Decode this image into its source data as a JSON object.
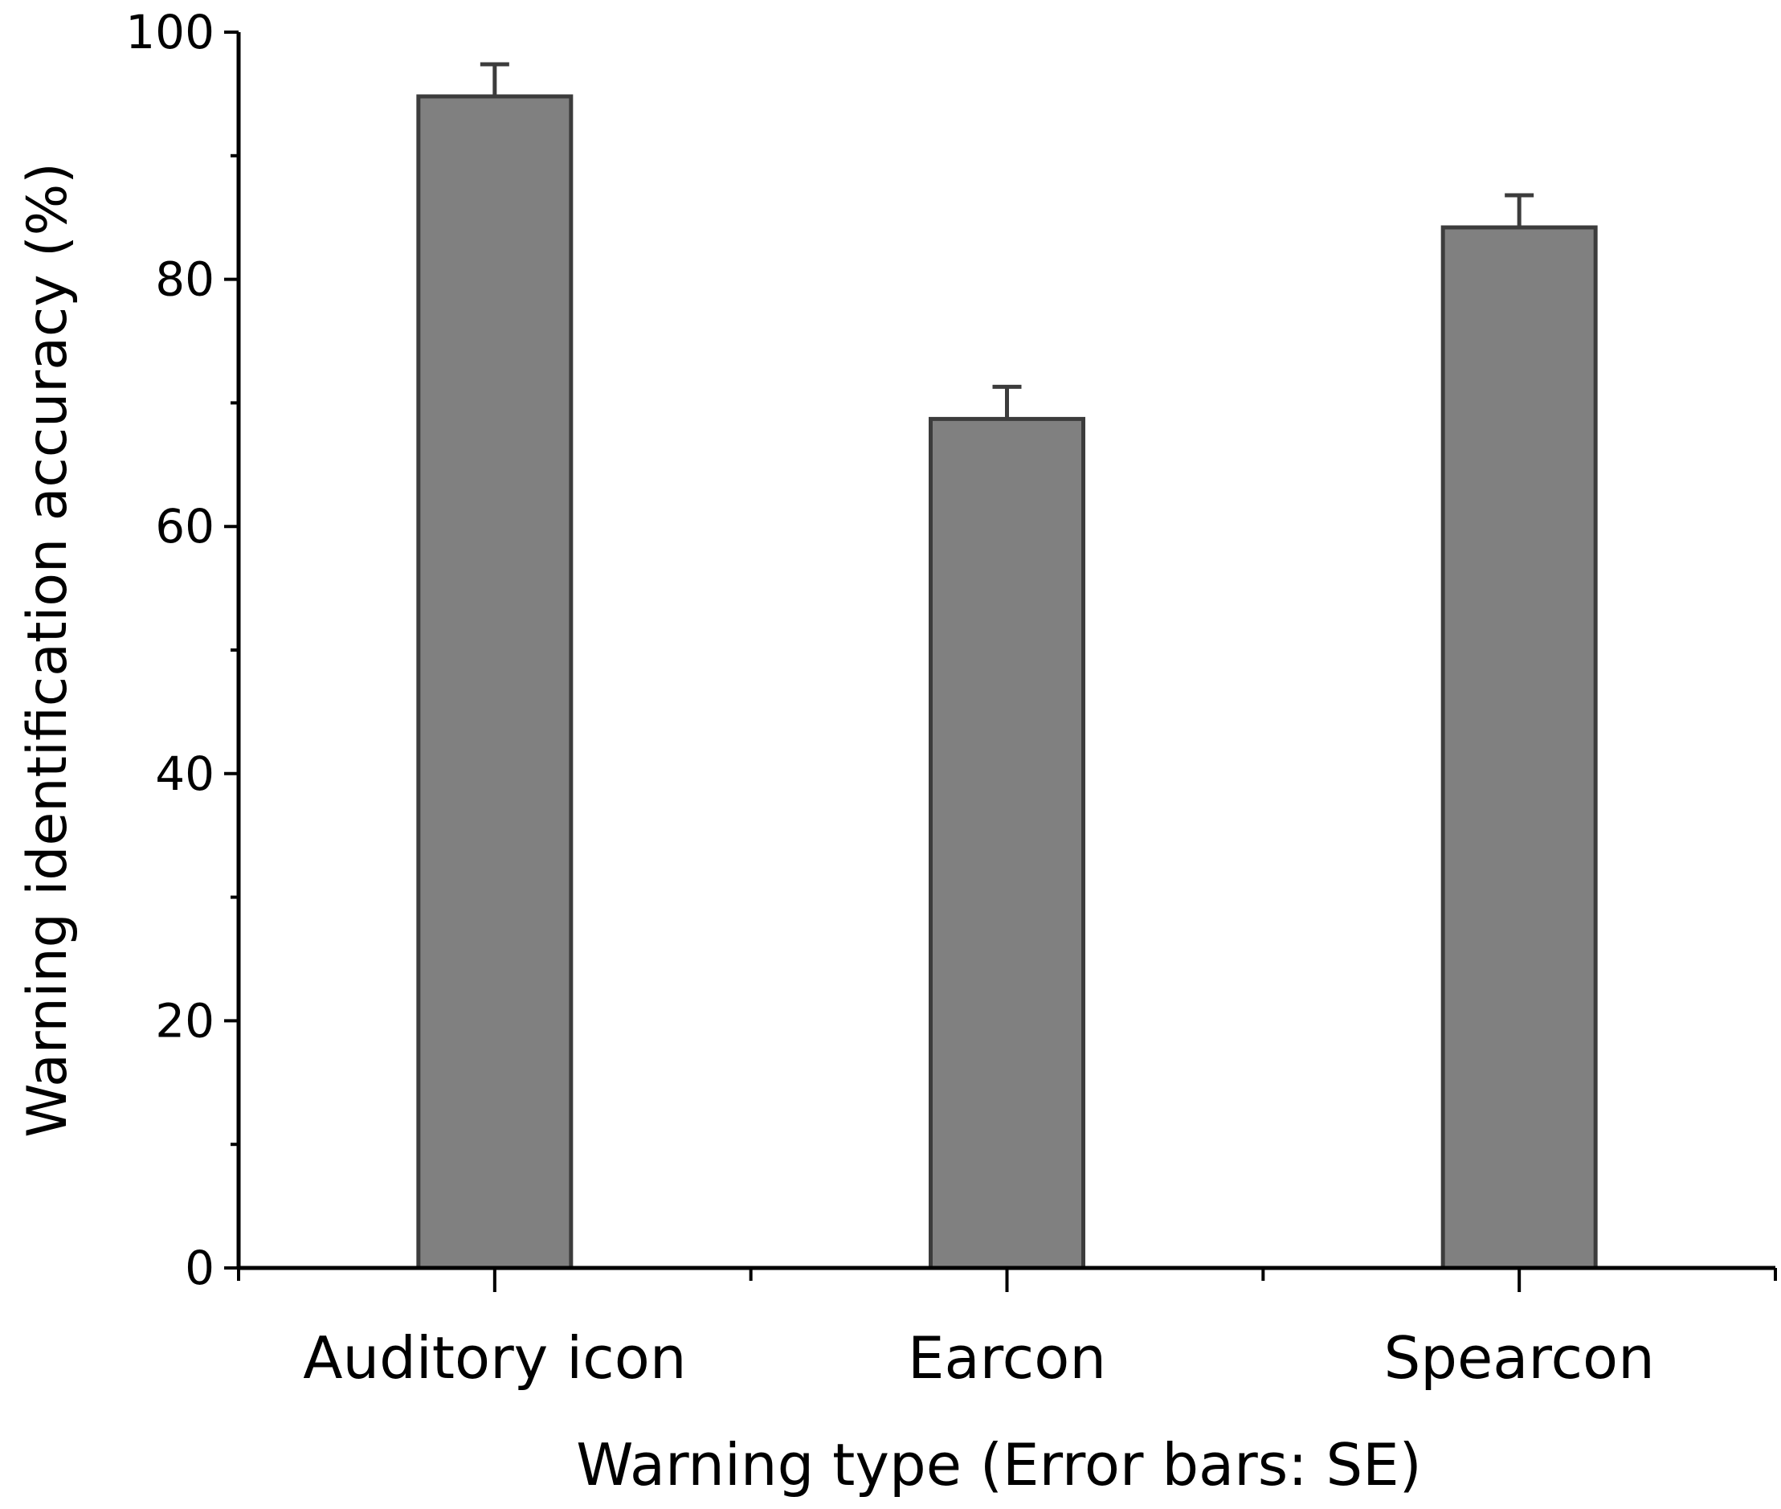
{
  "chart_data": {
    "type": "bar",
    "categories": [
      "Auditory icon",
      "Earcon",
      "Spearcon"
    ],
    "values": [
      94.8,
      68.7,
      84.2
    ],
    "error_bars": {
      "type": "SE",
      "values": [
        2.6,
        2.6,
        2.6
      ]
    },
    "title": "",
    "xlabel": "Warning type (Error bars: SE)",
    "ylabel": "Warning identification accuracy (%)",
    "ylim": [
      0,
      100
    ],
    "yticks": [
      0,
      20,
      40,
      60,
      80,
      100
    ],
    "grid": false,
    "legend": "none",
    "colors": {
      "bar_fill": "#808080",
      "bar_stroke": "#3c3c3c",
      "axis": "#000000",
      "error_bar": "#3c3c3c"
    }
  }
}
